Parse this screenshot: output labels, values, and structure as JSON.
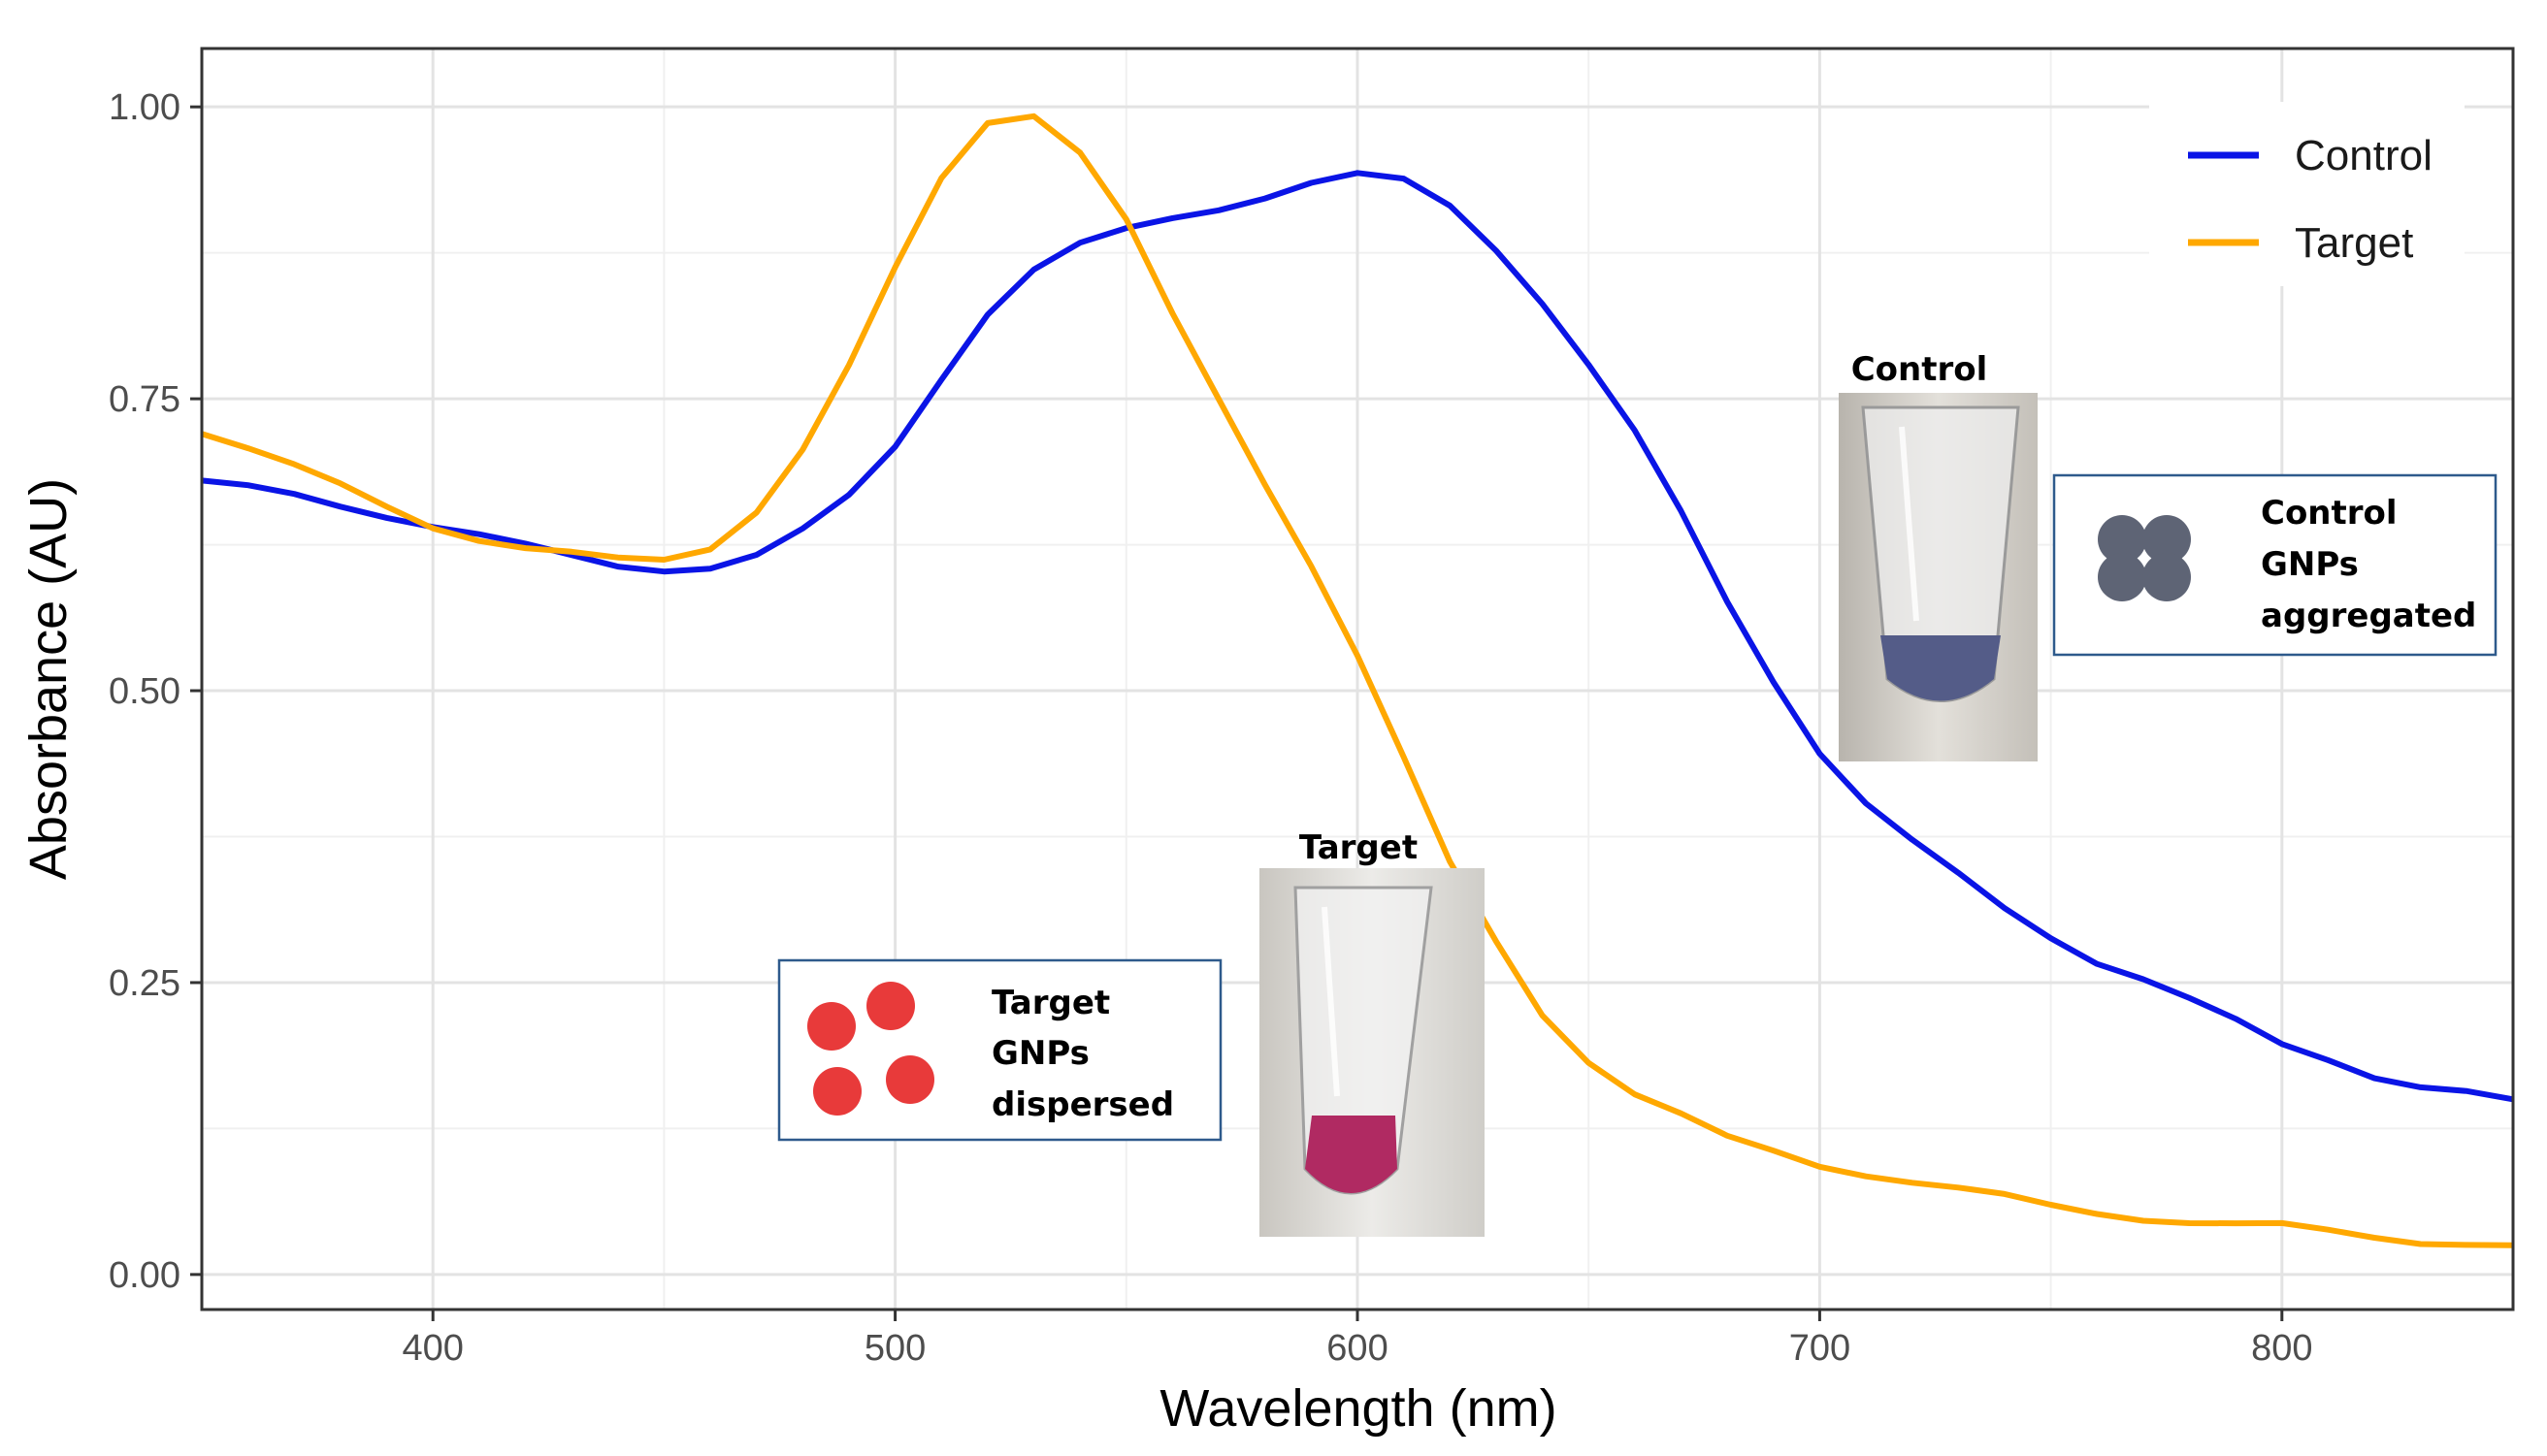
{
  "chart_data": {
    "type": "line",
    "xlabel": "Wavelength (nm)",
    "ylabel": "Absorbance (AU)",
    "xlim": [
      350,
      850
    ],
    "ylim": [
      -0.03,
      1.05
    ],
    "xticks": [
      400,
      500,
      600,
      700,
      800
    ],
    "xtick_labels": [
      "400",
      "500",
      "600",
      "700",
      "800"
    ],
    "yticks": [
      0,
      0.25,
      0.5,
      0.75,
      1.0
    ],
    "ytick_labels": [
      "0.00",
      "0.25",
      "0.50",
      "0.75",
      "1.00"
    ],
    "grid": true,
    "legend_position": "top-right",
    "series": [
      {
        "name": "Control",
        "color": "#0a14e6",
        "x": [
          350,
          360,
          370,
          380,
          390,
          400,
          410,
          420,
          430,
          440,
          450,
          460,
          470,
          480,
          490,
          500,
          510,
          520,
          530,
          540,
          550,
          560,
          570,
          580,
          590,
          600,
          610,
          620,
          630,
          640,
          650,
          660,
          670,
          680,
          690,
          700,
          710,
          720,
          730,
          740,
          750,
          760,
          770,
          780,
          790,
          800,
          810,
          820,
          830,
          840,
          850
        ],
        "y": [
          0.68,
          0.672,
          0.667,
          0.66,
          0.652,
          0.642,
          0.632,
          0.622,
          0.614,
          0.608,
          0.606,
          0.607,
          0.615,
          0.635,
          0.665,
          0.71,
          0.77,
          0.825,
          0.86,
          0.88,
          0.893,
          0.905,
          0.915,
          0.925,
          0.935,
          0.94,
          0.935,
          0.915,
          0.88,
          0.835,
          0.78,
          0.72,
          0.65,
          0.575,
          0.51,
          0.45,
          0.405,
          0.37,
          0.34,
          0.312,
          0.29,
          0.27,
          0.255,
          0.235,
          0.215,
          0.195,
          0.185,
          0.172,
          0.163,
          0.156,
          0.15
        ]
      },
      {
        "name": "Target",
        "color": "#ffa800",
        "x": [
          350,
          360,
          370,
          380,
          390,
          400,
          410,
          420,
          430,
          440,
          450,
          460,
          470,
          480,
          490,
          500,
          510,
          520,
          530,
          540,
          550,
          560,
          570,
          580,
          590,
          600,
          610,
          620,
          630,
          640,
          650,
          660,
          670,
          680,
          690,
          700,
          710,
          720,
          730,
          740,
          750,
          760,
          770,
          780,
          790,
          800,
          810,
          820,
          830,
          840,
          850
        ],
        "y": [
          0.72,
          0.705,
          0.69,
          0.676,
          0.66,
          0.643,
          0.63,
          0.62,
          0.615,
          0.612,
          0.614,
          0.625,
          0.655,
          0.705,
          0.775,
          0.86,
          0.94,
          0.99,
          0.995,
          0.96,
          0.9,
          0.82,
          0.75,
          0.68,
          0.61,
          0.53,
          0.44,
          0.35,
          0.285,
          0.225,
          0.185,
          0.155,
          0.135,
          0.115,
          0.105,
          0.095,
          0.088,
          0.08,
          0.072,
          0.065,
          0.058,
          0.054,
          0.05,
          0.046,
          0.042,
          0.04,
          0.036,
          0.033,
          0.03,
          0.028,
          0.025
        ]
      }
    ],
    "annotations": {
      "control_photo_title": "Control",
      "target_photo_title": "Target",
      "control_box": {
        "line1": "Control",
        "line2": "GNPs",
        "line3": "aggregated",
        "dot_color": "#5e6475"
      },
      "target_box": {
        "line1": "Target",
        "line2": "GNPs",
        "line3": "dispersed",
        "dot_color": "#e83a3a"
      }
    }
  }
}
